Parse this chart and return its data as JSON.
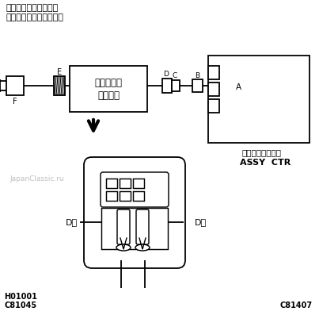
{
  "bg_color": "#ffffff",
  "line_color": "#000000",
  "title_line1": "ホーンボタンＡＳＳＹ",
  "title_line2": "（運転席側エアバッグ）",
  "spiral_line1": "スパイラル",
  "spiral_line2": "ケーブル",
  "sensor_line1": "エアバッグセンサ",
  "sensor_line2": "ASSY  CTR",
  "label_E": "E",
  "label_F": "F",
  "label_D": "D",
  "label_C": "C",
  "label_B": "B",
  "label_A": "A",
  "label_Dminus": "D－",
  "label_Dplus": "D＋",
  "watermark": "JapanClassic.ru",
  "code1": "H01001",
  "code2": "C81045",
  "code3": "C81407",
  "gray_color": "#bbbbbb"
}
